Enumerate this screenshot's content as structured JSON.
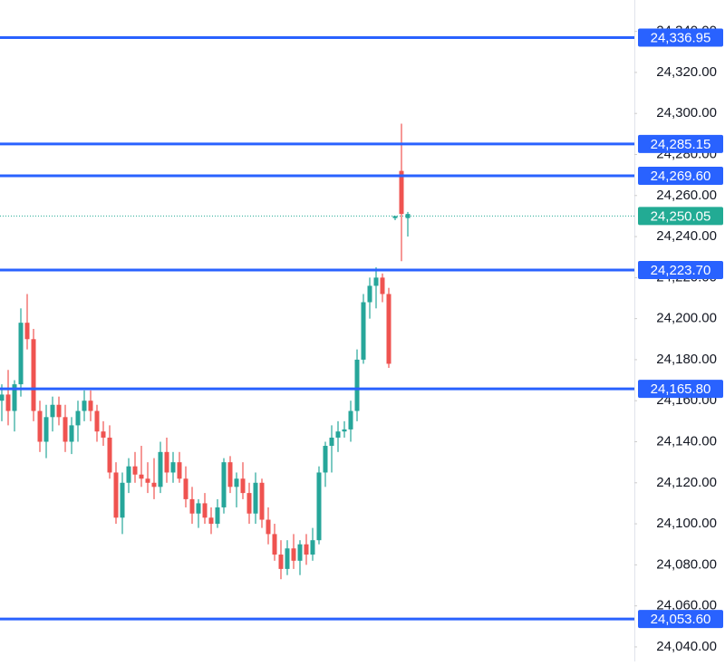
{
  "chart_data": {
    "type": "candlestick",
    "open": [
      24160,
      24163,
      24155,
      24168,
      24198,
      24190,
      24155,
      24140,
      24152,
      24158,
      24152,
      24140,
      24148,
      24155,
      24160,
      24155,
      24145,
      24142,
      24125,
      24103,
      24120,
      24128,
      24124,
      24122,
      24120,
      24118,
      24135,
      24125,
      24130,
      24122,
      24112,
      24105,
      24110,
      24103,
      24100,
      24108,
      24130,
      24118,
      24122,
      24115,
      24105,
      24120,
      24102,
      24095,
      24085,
      24078,
      24088,
      24082,
      24090,
      24085,
      24092,
      24125,
      24138,
      24142,
      24145,
      24146,
      24155,
      24180,
      24208,
      24216,
      24220,
      24212,
      24249,
      24272,
      24249
    ],
    "high": [
      24168,
      24175,
      24170,
      24205,
      24212,
      24195,
      24160,
      24158,
      24162,
      24162,
      24158,
      24152,
      24160,
      24165,
      24165,
      24158,
      24150,
      24148,
      24130,
      24125,
      24132,
      24135,
      24138,
      24130,
      24132,
      24140,
      24142,
      24135,
      24135,
      24128,
      24118,
      24112,
      24115,
      24108,
      24112,
      24132,
      24133,
      24125,
      24130,
      24120,
      24125,
      24122,
      24108,
      24100,
      24092,
      24092,
      24095,
      24092,
      24095,
      24098,
      24128,
      24140,
      24148,
      24150,
      24150,
      24160,
      24185,
      24212,
      24220,
      24225,
      24222,
      24215,
      24250,
      24295,
      24252
    ],
    "low": [
      24150,
      24148,
      24145,
      24162,
      24185,
      24150,
      24135,
      24132,
      24145,
      24148,
      24135,
      24134,
      24140,
      24150,
      24150,
      24140,
      24138,
      24122,
      24100,
      24095,
      24115,
      24120,
      24118,
      24115,
      24112,
      24115,
      24120,
      24120,
      24120,
      24108,
      24100,
      24098,
      24100,
      24095,
      24098,
      24105,
      24115,
      24108,
      24112,
      24100,
      24100,
      24098,
      24090,
      24082,
      24073,
      24075,
      24078,
      24075,
      24080,
      24082,
      24090,
      24118,
      24125,
      24135,
      24142,
      24140,
      24150,
      24178,
      24200,
      24205,
      24208,
      24176,
      24248,
      24228,
      24240
    ],
    "close": [
      24163,
      24155,
      24168,
      24198,
      24190,
      24155,
      24140,
      24152,
      24158,
      24152,
      24140,
      24148,
      24155,
      24160,
      24155,
      24145,
      24142,
      24125,
      24103,
      24120,
      24128,
      24124,
      24122,
      24120,
      24118,
      24135,
      24125,
      24130,
      24122,
      24112,
      24105,
      24110,
      24103,
      24100,
      24108,
      24130,
      24118,
      24122,
      24115,
      24105,
      24120,
      24102,
      24095,
      24085,
      24078,
      24088,
      24082,
      24090,
      24085,
      24092,
      24125,
      24138,
      24142,
      24145,
      24146,
      24155,
      24180,
      24208,
      24216,
      24220,
      24212,
      24178,
      24250,
      24251,
      24251
    ],
    "up_color": "#26a69a",
    "down_color": "#ef5350",
    "ylim": [
      24032.9,
      24355.3
    ],
    "yticks": [
      {
        "value": 24040,
        "label": "24,040.00"
      },
      {
        "value": 24060,
        "label": "24,060.00"
      },
      {
        "value": 24080,
        "label": "24,080.00"
      },
      {
        "value": 24100,
        "label": "24,100.00"
      },
      {
        "value": 24120,
        "label": "24,120.00"
      },
      {
        "value": 24140,
        "label": "24,140.00"
      },
      {
        "value": 24160,
        "label": "24,160.00"
      },
      {
        "value": 24180,
        "label": "24,180.00"
      },
      {
        "value": 24200,
        "label": "24,200.00"
      },
      {
        "value": 24220,
        "label": "24,220.00"
      },
      {
        "value": 24240,
        "label": "24,240.00"
      },
      {
        "value": 24260,
        "label": "24,260.00"
      },
      {
        "value": 24280,
        "label": "24,280.00"
      },
      {
        "value": 24300,
        "label": "24,300.00"
      },
      {
        "value": 24320,
        "label": "24,320.00"
      },
      {
        "value": 24340,
        "label": "24,340.00"
      }
    ],
    "levels": [
      {
        "value": 24336.95,
        "label": "24,336.95"
      },
      {
        "value": 24285.15,
        "label": "24,285.15"
      },
      {
        "value": 24269.6,
        "label": "24,269.60"
      },
      {
        "value": 24223.7,
        "label": "24,223.70"
      },
      {
        "value": 24165.8,
        "label": "24,165.80"
      },
      {
        "value": 24053.6,
        "label": "24,053.60"
      }
    ],
    "level_color": "#2962ff",
    "last_price": {
      "value": 24250.05,
      "label": "24,250.05"
    },
    "last_price_color": "#22ab94"
  }
}
